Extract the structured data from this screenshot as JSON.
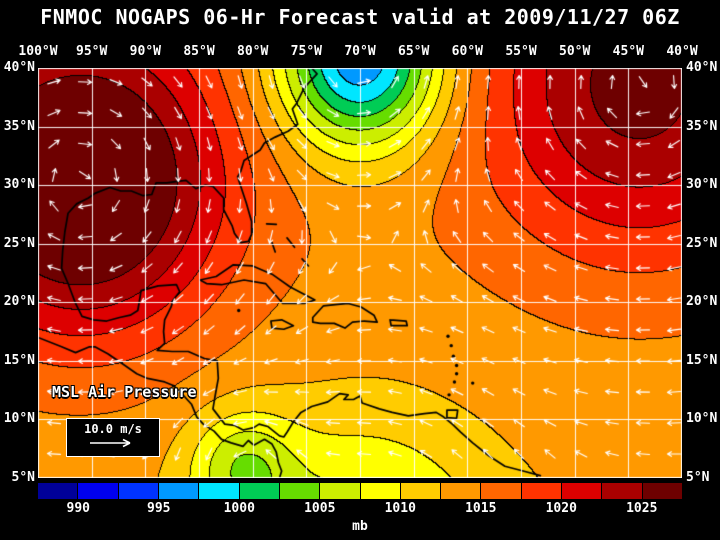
{
  "title": "FNMOC NOGAPS 06-Hr Forecast valid at 2009/11/27 06Z",
  "map": {
    "lon_min": -100,
    "lon_max": -40,
    "lat_min": 5,
    "lat_max": 40,
    "grid_step": 5,
    "lon_labels": [
      "100°W",
      "95°W",
      "90°W",
      "85°W",
      "80°W",
      "75°W",
      "70°W",
      "65°W",
      "60°W",
      "55°W",
      "50°W",
      "45°W",
      "40°W"
    ],
    "lat_labels": [
      "40°N",
      "35°N",
      "30°N",
      "25°N",
      "20°N",
      "15°N",
      "10°N",
      "5°N"
    ],
    "overlay_label": "MSL Air Pressure",
    "wind_legend": {
      "speed_label": "10.0 m/s"
    }
  },
  "chart_data": {
    "type": "heatmap",
    "field": "mean_sea_level_air_pressure",
    "units": "mb",
    "base_pressure_mb": 1014,
    "background_lat_gradient": {
      "mb_per_deg": 0.06,
      "reference_lat": 20
    },
    "contour_interval_mb": 2.5,
    "pressure_centers": [
      {
        "type": "high",
        "lon": -96,
        "lat": 30,
        "amplitude_mb": 17,
        "sigma_deg": 9
      },
      {
        "type": "low",
        "lon": -70,
        "lat": 41,
        "amplitude_mb": -20,
        "sigma_deg": 5.5
      },
      {
        "type": "high",
        "lon": -44,
        "lat": 38,
        "amplitude_mb": 11,
        "sigma_deg": 10
      },
      {
        "type": "low",
        "lon": -70,
        "lat": -2,
        "amplitude_mb": -8,
        "sigma_deg": 8
      },
      {
        "type": "low",
        "lon": -81,
        "lat": 6,
        "amplitude_mb": -7,
        "sigma_deg": 3.5
      }
    ],
    "wind_reference_speed_ms": 10.0
  },
  "colorbar": {
    "unit": "mb",
    "min": 987.5,
    "max": 1027.5,
    "step": 2.5,
    "tick_values": [
      990,
      995,
      1000,
      1005,
      1010,
      1015,
      1020,
      1025
    ],
    "colors": [
      "#000099",
      "#0000ee",
      "#0033ff",
      "#0099ff",
      "#00e6ff",
      "#00cc55",
      "#66dd00",
      "#ccee00",
      "#ffff00",
      "#ffcc00",
      "#ff9900",
      "#ff6600",
      "#ff3300",
      "#dd0000",
      "#aa0000",
      "#6e0000"
    ]
  },
  "colors": {
    "background": "#000000",
    "text": "#ffffff",
    "grid": "#ffffff",
    "coastline": "#000000",
    "arrows": "#ffffff"
  },
  "coastlines": [
    [
      [
        -74.5,
        40
      ],
      [
        -74.0,
        39.5
      ],
      [
        -75.2,
        38.3
      ],
      [
        -75.9,
        37.0
      ],
      [
        -76.3,
        36.5
      ],
      [
        -75.8,
        35.2
      ],
      [
        -76.7,
        34.6
      ],
      [
        -77.9,
        34.1
      ],
      [
        -78.9,
        33.6
      ],
      [
        -79.3,
        33.0
      ],
      [
        -80.8,
        32.1
      ],
      [
        -81.1,
        31.2
      ],
      [
        -81.4,
        30.7
      ],
      [
        -80.6,
        28.5
      ],
      [
        -80.1,
        26.9
      ],
      [
        -80.1,
        25.8
      ],
      [
        -80.4,
        25.2
      ],
      [
        -81.1,
        25.1
      ],
      [
        -81.7,
        25.9
      ],
      [
        -81.9,
        26.5
      ],
      [
        -82.7,
        27.9
      ],
      [
        -82.7,
        28.9
      ],
      [
        -83.7,
        29.9
      ],
      [
        -84.4,
        30.0
      ],
      [
        -85.3,
        29.7
      ],
      [
        -86.2,
        30.4
      ],
      [
        -87.2,
        30.3
      ],
      [
        -88.0,
        30.2
      ],
      [
        -89.0,
        30.2
      ],
      [
        -89.4,
        29.2
      ],
      [
        -90.2,
        29.1
      ],
      [
        -91.3,
        29.5
      ],
      [
        -92.3,
        29.5
      ],
      [
        -93.3,
        29.8
      ],
      [
        -94.7,
        29.3
      ],
      [
        -95.3,
        28.9
      ],
      [
        -96.4,
        28.4
      ],
      [
        -97.2,
        27.6
      ],
      [
        -97.5,
        26.0
      ],
      [
        -97.7,
        24.4
      ],
      [
        -97.8,
        22.9
      ],
      [
        -97.2,
        21.6
      ],
      [
        -96.5,
        19.9
      ],
      [
        -95.9,
        18.8
      ],
      [
        -94.8,
        18.5
      ],
      [
        -93.6,
        18.4
      ],
      [
        -92.4,
        18.7
      ],
      [
        -91.4,
        18.9
      ],
      [
        -90.7,
        19.3
      ],
      [
        -90.5,
        20.4
      ],
      [
        -90.4,
        21.0
      ],
      [
        -88.8,
        21.4
      ],
      [
        -87.1,
        21.5
      ],
      [
        -86.8,
        20.9
      ],
      [
        -87.4,
        20.2
      ],
      [
        -87.6,
        19.6
      ],
      [
        -88.2,
        18.5
      ],
      [
        -88.3,
        17.5
      ],
      [
        -88.2,
        16.5
      ],
      [
        -88.9,
        15.9
      ],
      [
        -87.5,
        15.8
      ],
      [
        -86.0,
        15.8
      ],
      [
        -84.5,
        15.2
      ],
      [
        -83.3,
        15.0
      ],
      [
        -83.2,
        13.5
      ],
      [
        -83.5,
        12.0
      ],
      [
        -83.7,
        10.9
      ],
      [
        -82.6,
        9.6
      ],
      [
        -81.7,
        9.5
      ],
      [
        -80.9,
        9.1
      ],
      [
        -79.9,
        9.3
      ],
      [
        -79.4,
        9.6
      ],
      [
        -78.6,
        9.4
      ],
      [
        -77.5,
        8.6
      ],
      [
        -77.1,
        8.5
      ],
      [
        -76.8,
        8.9
      ],
      [
        -76.2,
        9.8
      ],
      [
        -75.5,
        10.6
      ],
      [
        -74.5,
        11.1
      ],
      [
        -73.0,
        11.5
      ],
      [
        -71.9,
        12.2
      ],
      [
        -71.1,
        12.1
      ],
      [
        -71.5,
        11.7
      ],
      [
        -70.6,
        11.7
      ],
      [
        -70.0,
        12.0
      ],
      [
        -69.8,
        11.4
      ],
      [
        -68.2,
        10.9
      ],
      [
        -67.0,
        10.6
      ],
      [
        -65.5,
        10.3
      ],
      [
        -64.0,
        10.5
      ],
      [
        -62.9,
        10.6
      ],
      [
        -62.2,
        10.2
      ],
      [
        -61.4,
        9.6
      ],
      [
        -60.6,
        8.9
      ],
      [
        -59.5,
        8.0
      ],
      [
        -58.0,
        6.9
      ],
      [
        -56.5,
        6.0
      ],
      [
        -54.8,
        5.6
      ],
      [
        -53.2,
        5.2
      ]
    ],
    [
      [
        -100.0,
        17.0
      ],
      [
        -97.8,
        16.2
      ],
      [
        -96.5,
        15.7
      ],
      [
        -95.2,
        16.2
      ],
      [
        -94.7,
        16.2
      ],
      [
        -93.5,
        15.6
      ],
      [
        -92.2,
        14.8
      ],
      [
        -90.8,
        13.9
      ],
      [
        -89.8,
        13.5
      ],
      [
        -88.2,
        13.2
      ],
      [
        -87.4,
        12.9
      ],
      [
        -86.7,
        12.3
      ],
      [
        -85.7,
        11.3
      ],
      [
        -85.2,
        10.2
      ],
      [
        -84.6,
        9.6
      ],
      [
        -83.6,
        9.0
      ],
      [
        -82.9,
        8.3
      ],
      [
        -82.0,
        8.0
      ],
      [
        -80.9,
        7.7
      ],
      [
        -80.4,
        8.2
      ],
      [
        -79.9,
        7.8
      ],
      [
        -78.9,
        8.3
      ],
      [
        -78.2,
        7.9
      ],
      [
        -77.8,
        7.2
      ],
      [
        -77.6,
        6.3
      ],
      [
        -77.3,
        5.6
      ],
      [
        -77.5,
        5.0
      ]
    ],
    [
      [
        -84.9,
        21.9
      ],
      [
        -83.4,
        22.2
      ],
      [
        -81.8,
        23.2
      ],
      [
        -80.0,
        23.1
      ],
      [
        -78.2,
        22.4
      ],
      [
        -76.5,
        21.3
      ],
      [
        -74.2,
        20.2
      ],
      [
        -75.2,
        19.9
      ],
      [
        -77.2,
        19.9
      ],
      [
        -78.8,
        21.6
      ],
      [
        -80.8,
        21.9
      ],
      [
        -82.9,
        21.5
      ],
      [
        -84.3,
        21.6
      ],
      [
        -84.9,
        21.9
      ]
    ],
    [
      [
        -74.4,
        18.7
      ],
      [
        -73.4,
        19.7
      ],
      [
        -72.3,
        19.8
      ],
      [
        -71.1,
        19.9
      ],
      [
        -69.9,
        19.6
      ],
      [
        -68.7,
        18.9
      ],
      [
        -68.4,
        18.3
      ],
      [
        -69.6,
        18.4
      ],
      [
        -70.7,
        18.3
      ],
      [
        -71.4,
        17.8
      ],
      [
        -72.4,
        18.2
      ],
      [
        -73.7,
        18.2
      ],
      [
        -74.4,
        18.3
      ],
      [
        -74.4,
        18.7
      ]
    ],
    [
      [
        -78.3,
        18.4
      ],
      [
        -77.3,
        18.5
      ],
      [
        -76.2,
        18.0
      ],
      [
        -77.1,
        17.7
      ],
      [
        -78.2,
        17.8
      ],
      [
        -78.3,
        18.4
      ]
    ],
    [
      [
        -67.2,
        18.5
      ],
      [
        -65.7,
        18.4
      ],
      [
        -65.6,
        18.0
      ],
      [
        -67.1,
        18.0
      ],
      [
        -67.2,
        18.5
      ]
    ],
    [
      [
        -61.9,
        10.8
      ],
      [
        -60.9,
        10.8
      ],
      [
        -61.0,
        10.1
      ],
      [
        -61.9,
        10.15
      ],
      [
        -61.9,
        10.8
      ]
    ],
    [
      [
        -78.7,
        26.7
      ],
      [
        -77.8,
        26.65
      ]
    ],
    [
      [
        -78.2,
        25.1
      ],
      [
        -77.9,
        24.3
      ]
    ],
    [
      [
        -76.8,
        25.5
      ],
      [
        -76.1,
        24.7
      ]
    ],
    [
      [
        -75.4,
        23.7
      ],
      [
        -74.8,
        23.1
      ]
    ]
  ],
  "island_dots": [
    [
      -61.8,
      17.1
    ],
    [
      -61.5,
      16.3
    ],
    [
      -61.3,
      15.4
    ],
    [
      -61.0,
      14.6
    ],
    [
      -61.0,
      13.9
    ],
    [
      -61.2,
      13.2
    ],
    [
      -59.5,
      13.1
    ],
    [
      -61.7,
      12.1
    ],
    [
      -81.3,
      19.3
    ]
  ]
}
